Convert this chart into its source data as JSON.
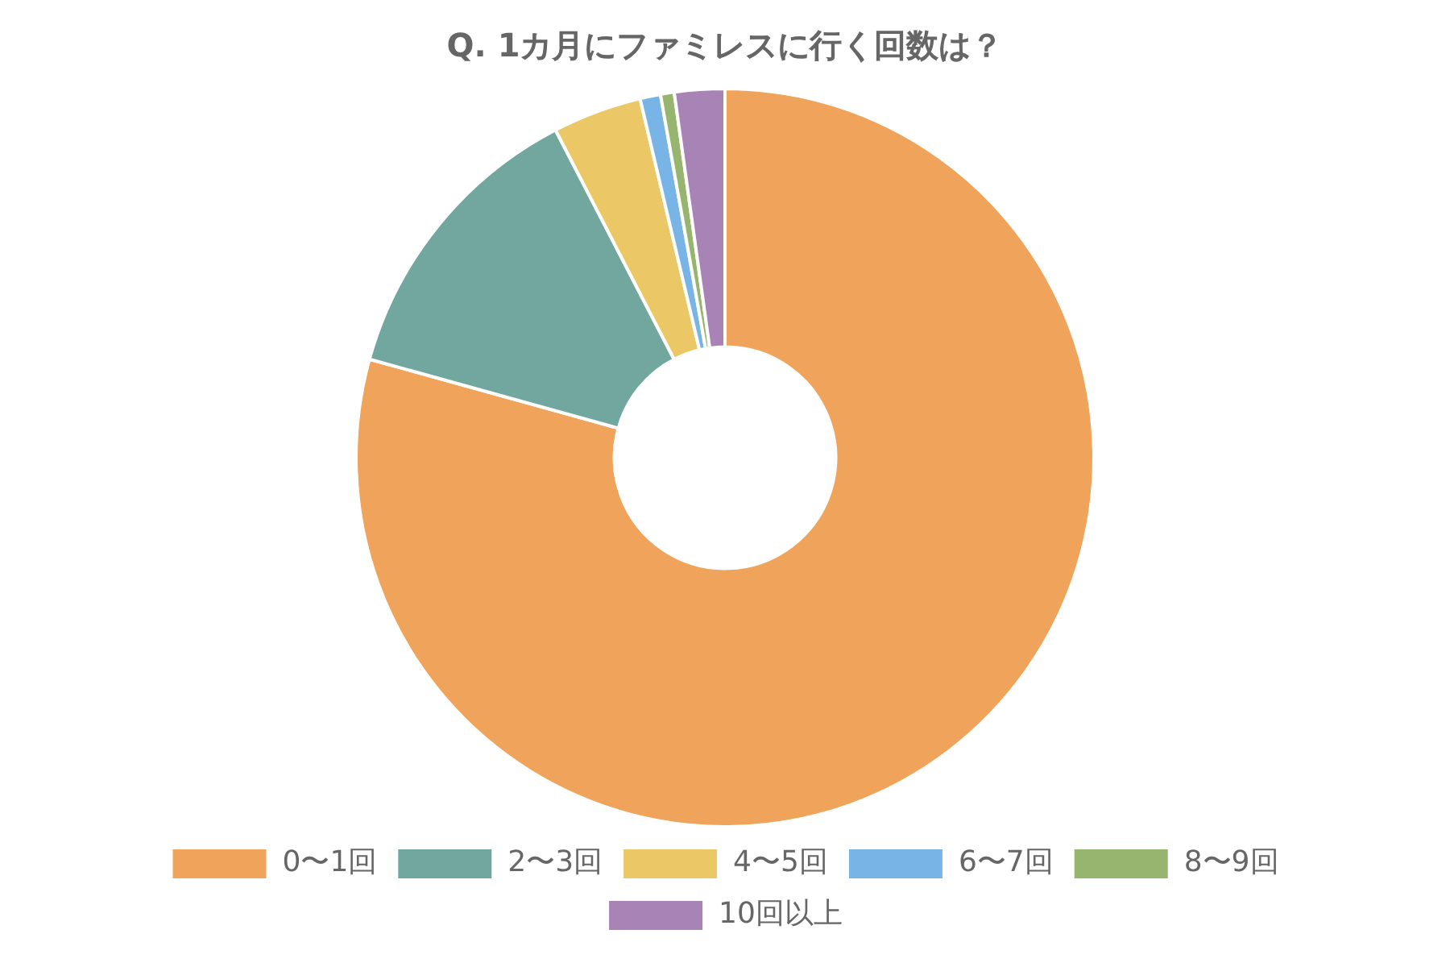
{
  "chart_data": {
    "type": "donut",
    "title": "Q. 1カ月にファミレスに行く回数は？",
    "categories": [
      "0〜1回",
      "2〜3回",
      "4〜5回",
      "6〜7回",
      "8〜9回",
      "10回以上"
    ],
    "values": [
      79.3,
      13.1,
      3.9,
      0.9,
      0.6,
      2.2
    ],
    "colors": [
      "#f0a35a",
      "#72a7a0",
      "#ecc766",
      "#79b4e6",
      "#97b56f",
      "#a883b5"
    ],
    "legend": "bottom"
  }
}
